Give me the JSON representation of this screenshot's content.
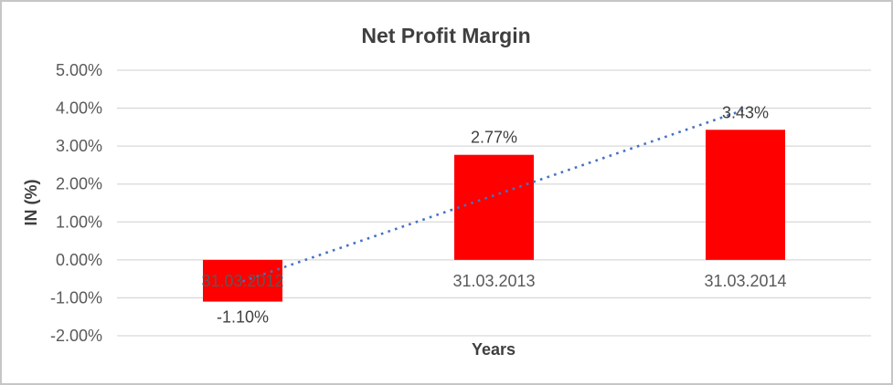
{
  "chart_data": {
    "type": "bar",
    "title": "Net Profit Margin",
    "xlabel": "Years",
    "ylabel": "IN (%)",
    "categories": [
      "31.03.2012",
      "31.03.2013",
      "31.03.2014"
    ],
    "values": [
      -1.1,
      2.77,
      3.43
    ],
    "data_labels": [
      "-1.10%",
      "2.77%",
      "3.43%"
    ],
    "ylim": [
      -2,
      5
    ],
    "ytick_step": 1,
    "ytick_labels": [
      "5.00%",
      "4.00%",
      "3.00%",
      "2.00%",
      "1.00%",
      "0.00%",
      "-1.00%",
      "-2.00%"
    ],
    "grid": true,
    "legend_position": "none",
    "bar_color": "#FF0000",
    "trendline": {
      "type": "linear",
      "style": "dotted",
      "color": "#4472C4"
    },
    "colors": {
      "title_text": "#3F3F3F",
      "axis_title_text": "#3F3F3F",
      "tick_text": "#595959",
      "data_label_text": "#404040",
      "gridline": "#D9D9D9",
      "frame_border": "#C6C6C6",
      "background": "#FFFFFF"
    }
  }
}
